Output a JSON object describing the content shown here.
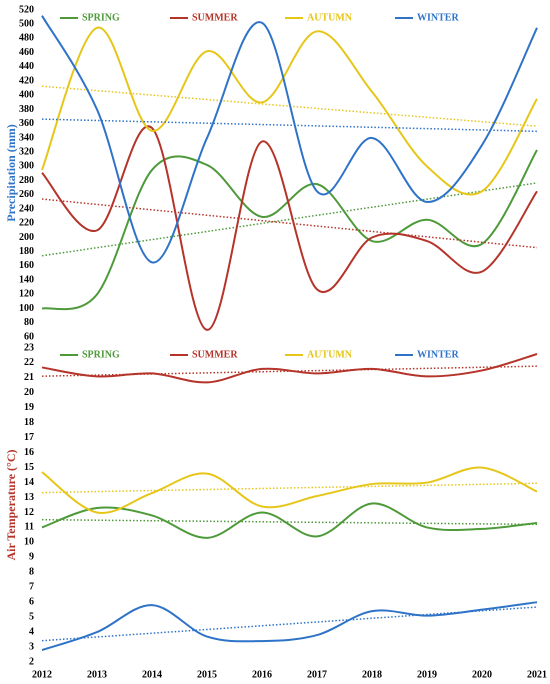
{
  "chart_data": [
    {
      "type": "line",
      "y_label": "Precipitation (mm)",
      "ylim": [
        60,
        520
      ],
      "yticks": [
        60,
        80,
        100,
        120,
        140,
        160,
        180,
        200,
        220,
        240,
        260,
        280,
        300,
        320,
        340,
        360,
        380,
        400,
        420,
        440,
        460,
        480,
        500,
        520
      ],
      "series": [
        {
          "name": "SPRING",
          "color": "#4e9a3a",
          "values": [
            100,
            120,
            295,
            302,
            229,
            275,
            195,
            225,
            191,
            323
          ]
        },
        {
          "name": "SUMMER",
          "color": "#b5342a",
          "values": [
            291,
            210,
            354,
            70,
            335,
            127,
            200,
            195,
            152,
            265
          ]
        },
        {
          "name": "AUTUMN",
          "color": "#e6c619",
          "values": [
            295,
            495,
            350,
            462,
            390,
            490,
            405,
            300,
            265,
            395
          ]
        },
        {
          "name": "WINTER",
          "color": "#2e73c8",
          "values": [
            512,
            380,
            165,
            340,
            502,
            265,
            340,
            250,
            330,
            495
          ]
        }
      ]
    },
    {
      "type": "line",
      "y_label": "Air Temperature (°C)",
      "categories": [
        "2012",
        "2013",
        "2014",
        "2015",
        "2016",
        "2017",
        "2018",
        "2019",
        "2020",
        "2021"
      ],
      "ylim": [
        2,
        23
      ],
      "yticks": [
        2,
        3,
        4,
        5,
        6,
        7,
        8,
        9,
        10,
        11,
        12,
        13,
        14,
        15,
        16,
        17,
        18,
        19,
        20,
        21,
        22,
        23
      ],
      "series": [
        {
          "name": "SPRING",
          "color": "#4e9a3a",
          "values": [
            11.0,
            12.3,
            11.8,
            10.3,
            12.0,
            10.4,
            12.6,
            11.0,
            10.9,
            11.3
          ]
        },
        {
          "name": "SUMMER",
          "color": "#b5342a",
          "values": [
            21.7,
            21.1,
            21.3,
            20.7,
            21.6,
            21.3,
            21.6,
            21.1,
            21.5,
            22.6
          ]
        },
        {
          "name": "AUTUMN",
          "color": "#e6c619",
          "values": [
            14.7,
            12.0,
            13.3,
            14.6,
            12.4,
            13.1,
            13.9,
            14.0,
            15.0,
            13.4
          ]
        },
        {
          "name": "WINTER",
          "color": "#2e73c8",
          "values": [
            2.8,
            4.0,
            5.8,
            3.7,
            3.4,
            3.8,
            5.4,
            5.1,
            5.5,
            6.0
          ]
        }
      ]
    }
  ]
}
